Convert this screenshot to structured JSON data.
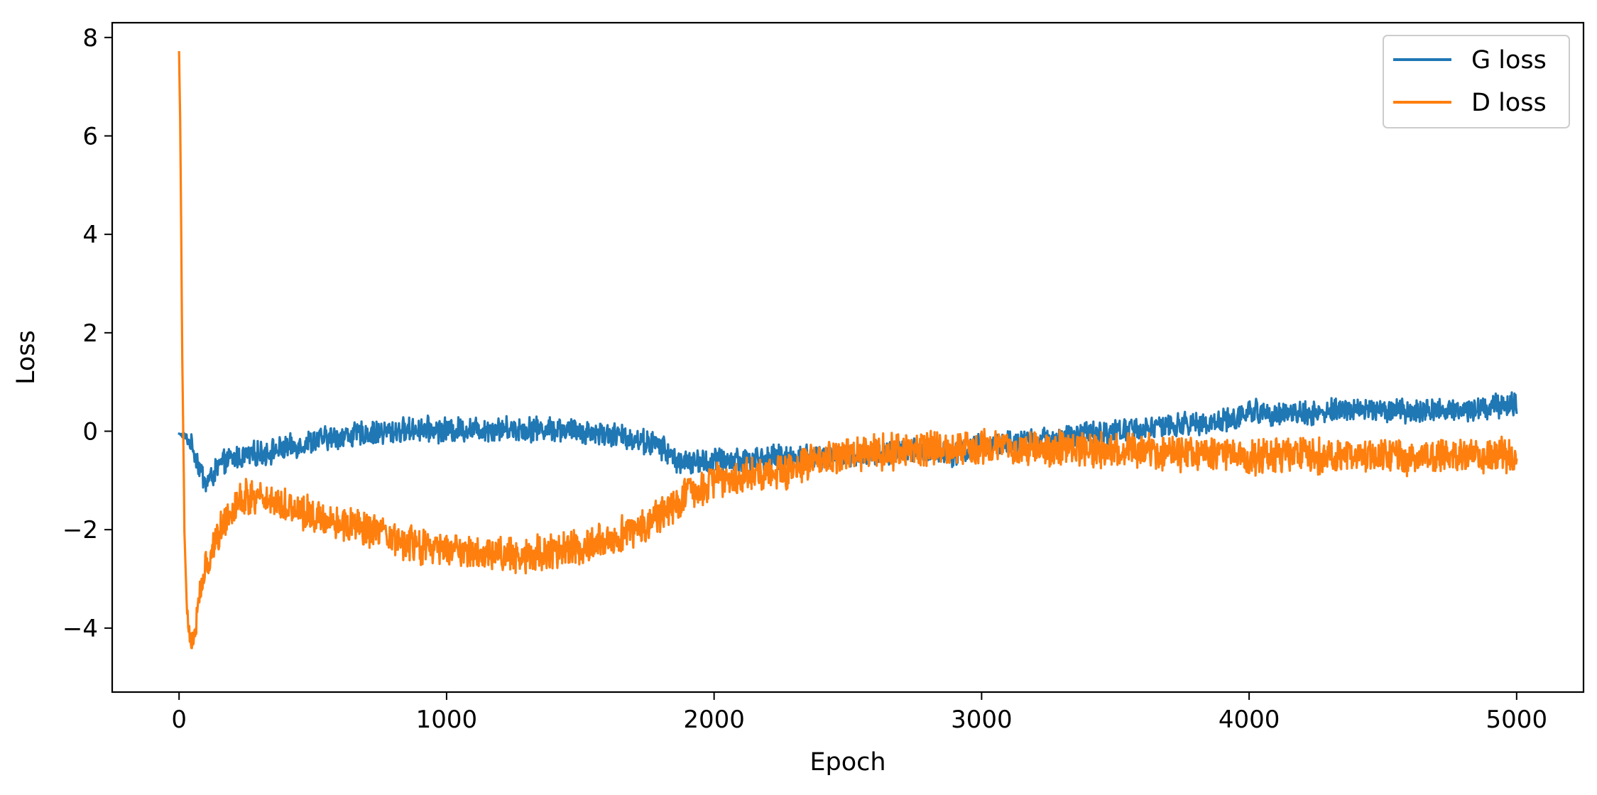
{
  "chart_data": {
    "type": "line",
    "title": "",
    "xlabel": "Epoch",
    "ylabel": "Loss",
    "xlim": [
      -250,
      5250
    ],
    "ylim": [
      -5.3,
      8.3
    ],
    "xticks": [
      0,
      1000,
      2000,
      3000,
      4000,
      5000
    ],
    "xtick_labels": [
      "0",
      "1000",
      "2000",
      "3000",
      "4000",
      "5000"
    ],
    "yticks": [
      -4,
      -2,
      0,
      2,
      4,
      6,
      8
    ],
    "ytick_labels": [
      "−4",
      "−2",
      "0",
      "2",
      "4",
      "6",
      "8"
    ],
    "grid": false,
    "legend_position": "upper right",
    "series": [
      {
        "name": "G loss",
        "color": "#1f77b4",
        "noise": 0.22,
        "values": [
          [
            0,
            -0.05
          ],
          [
            20,
            -0.1
          ],
          [
            50,
            -0.3
          ],
          [
            80,
            -0.8
          ],
          [
            100,
            -1.05
          ],
          [
            120,
            -0.95
          ],
          [
            150,
            -0.7
          ],
          [
            200,
            -0.55
          ],
          [
            300,
            -0.45
          ],
          [
            400,
            -0.35
          ],
          [
            500,
            -0.2
          ],
          [
            600,
            -0.1
          ],
          [
            700,
            -0.05
          ],
          [
            800,
            0.0
          ],
          [
            900,
            0.05
          ],
          [
            1000,
            0.02
          ],
          [
            1100,
            0.05
          ],
          [
            1200,
            0.05
          ],
          [
            1300,
            0.05
          ],
          [
            1400,
            0.05
          ],
          [
            1500,
            0.0
          ],
          [
            1600,
            -0.05
          ],
          [
            1700,
            -0.15
          ],
          [
            1800,
            -0.3
          ],
          [
            1850,
            -0.55
          ],
          [
            1900,
            -0.65
          ],
          [
            2000,
            -0.6
          ],
          [
            2200,
            -0.55
          ],
          [
            2400,
            -0.5
          ],
          [
            2600,
            -0.45
          ],
          [
            2800,
            -0.4
          ],
          [
            2900,
            -0.45
          ],
          [
            3000,
            -0.3
          ],
          [
            3200,
            -0.2
          ],
          [
            3400,
            -0.05
          ],
          [
            3600,
            0.05
          ],
          [
            3800,
            0.15
          ],
          [
            3950,
            0.25
          ],
          [
            4000,
            0.4
          ],
          [
            4200,
            0.35
          ],
          [
            4400,
            0.45
          ],
          [
            4600,
            0.4
          ],
          [
            4800,
            0.45
          ],
          [
            5000,
            0.55
          ]
        ]
      },
      {
        "name": "D loss",
        "color": "#ff7f0e",
        "noise": 0.32,
        "values": [
          [
            0,
            7.7
          ],
          [
            5,
            6.0
          ],
          [
            12,
            1.5
          ],
          [
            20,
            -2.0
          ],
          [
            30,
            -3.6
          ],
          [
            45,
            -4.4
          ],
          [
            60,
            -4.0
          ],
          [
            80,
            -3.3
          ],
          [
            100,
            -2.8
          ],
          [
            130,
            -2.3
          ],
          [
            170,
            -1.8
          ],
          [
            220,
            -1.4
          ],
          [
            300,
            -1.3
          ],
          [
            400,
            -1.5
          ],
          [
            500,
            -1.7
          ],
          [
            600,
            -1.85
          ],
          [
            700,
            -2.0
          ],
          [
            800,
            -2.2
          ],
          [
            900,
            -2.35
          ],
          [
            1000,
            -2.4
          ],
          [
            1100,
            -2.45
          ],
          [
            1200,
            -2.5
          ],
          [
            1300,
            -2.5
          ],
          [
            1400,
            -2.45
          ],
          [
            1500,
            -2.35
          ],
          [
            1600,
            -2.2
          ],
          [
            1700,
            -2.0
          ],
          [
            1800,
            -1.7
          ],
          [
            1900,
            -1.3
          ],
          [
            2000,
            -1.0
          ],
          [
            2100,
            -0.9
          ],
          [
            2200,
            -0.85
          ],
          [
            2300,
            -0.75
          ],
          [
            2400,
            -0.6
          ],
          [
            2500,
            -0.5
          ],
          [
            2600,
            -0.45
          ],
          [
            2800,
            -0.35
          ],
          [
            3000,
            -0.3
          ],
          [
            3200,
            -0.35
          ],
          [
            3400,
            -0.4
          ],
          [
            3600,
            -0.4
          ],
          [
            3800,
            -0.45
          ],
          [
            4000,
            -0.5
          ],
          [
            4200,
            -0.5
          ],
          [
            4400,
            -0.5
          ],
          [
            4600,
            -0.55
          ],
          [
            4800,
            -0.5
          ],
          [
            5000,
            -0.5
          ]
        ]
      }
    ]
  }
}
